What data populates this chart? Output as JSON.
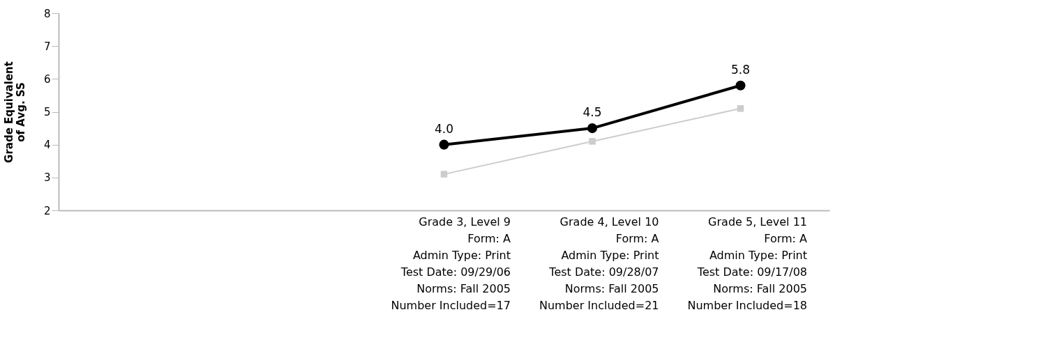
{
  "chart_data": {
    "type": "line",
    "ylabel": "Grade Equivalent\nof Avg. SS",
    "categories": [
      null,
      null,
      "Grade 3, Level 9\nForm: A\nAdmin Type: Print\nTest Date: 09/29/06\nNorms: Fall 2005\nNumber Included=17",
      "Grade 4, Level 10\nForm: A\nAdmin Type: Print\nTest Date: 09/28/07\nNorms: Fall 2005\nNumber Included=21",
      "Grade 5, Level 11\nForm: A\nAdmin Type: Print\nTest Date: 09/17/08\nNorms: Fall 2005\nNumber Included=18"
    ],
    "series": [
      {
        "color": "#cccccc",
        "marker": "square",
        "values": [
          null,
          null,
          3.1,
          4.1,
          5.1
        ]
      },
      {
        "color": "#000000",
        "marker": "circle",
        "values": [
          null,
          null,
          4.0,
          4.5,
          5.8
        ],
        "value_labels": [
          null,
          null,
          "4.0",
          "4.5",
          "5.8"
        ]
      }
    ],
    "ylim": [
      2,
      8
    ],
    "yticks": [
      2,
      3,
      4,
      5,
      6,
      7,
      8
    ],
    "grid": false
  }
}
